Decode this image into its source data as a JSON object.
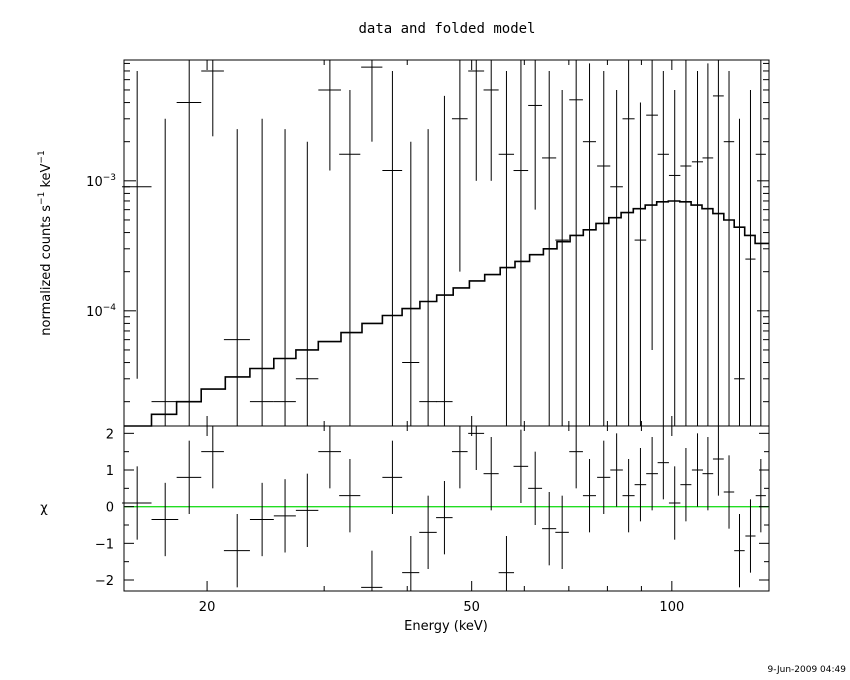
{
  "title": "data and folded model",
  "timestamp": "9-Jun-2009 04:49",
  "chart_data": [
    {
      "type": "scatter",
      "panel": "top",
      "title": "data and folded model",
      "xlabel": "Energy (keV)",
      "ylabel": "normalized counts s⁻¹ keV⁻¹",
      "xscale": "log",
      "yscale": "log",
      "xlim": [
        15,
        140
      ],
      "ylim": [
        1.3e-05,
        0.0085
      ],
      "y_ticks": [
        {
          "value": 0.0001,
          "base": "10",
          "exp": "−4"
        },
        {
          "value": 0.001,
          "base": "10",
          "exp": "−3"
        }
      ],
      "model_color": "#000000",
      "series": [
        {
          "kind": "data",
          "x": [
            15.7,
            17.3,
            18.8,
            20.4,
            22.2,
            24.2,
            26.2,
            28.3,
            30.6,
            32.8,
            35.4,
            38.0,
            40.5,
            43.0,
            45.5,
            48.0,
            50.8,
            53.5,
            56.4,
            59.3,
            62.3,
            65.4,
            68.4,
            71.8,
            75.2,
            79.0,
            82.6,
            86.1,
            89.7,
            93.4,
            97.1,
            101.0,
            105.0,
            109.3,
            113.3,
            117.5,
            121.9,
            126.4,
            131.3,
            136.1
          ],
          "xerr": [
            0.8,
            0.8,
            0.8,
            0.8,
            1.0,
            1.0,
            1.0,
            1.1,
            1.2,
            1.2,
            1.3,
            1.3,
            1.2,
            1.3,
            1.3,
            1.3,
            1.4,
            1.4,
            1.5,
            1.5,
            1.5,
            1.6,
            1.6,
            1.7,
            1.7,
            1.8,
            1.8,
            1.8,
            1.8,
            1.9,
            1.9,
            2.0,
            2.0,
            2.1,
            2.1,
            2.2,
            2.2,
            2.3,
            2.3,
            2.4
          ],
          "y": [
            0.0009,
            2e-05,
            0.004,
            0.007,
            6e-05,
            2e-05,
            2e-05,
            3e-05,
            0.005,
            0.0016,
            0.0075,
            0.0012,
            4e-05,
            2e-05,
            2e-05,
            0.003,
            0.007,
            0.005,
            0.0016,
            0.0012,
            0.0038,
            0.0015,
            0.00035,
            0.0042,
            0.002,
            0.0013,
            0.0009,
            0.003,
            0.00035,
            0.0032,
            0.0016,
            0.0011,
            0.0013,
            0.0014,
            0.0015,
            0.0045,
            0.002,
            3e-05,
            0.00025,
            0.0016
          ],
          "ylo": [
            3e-05,
            1.3e-05,
            1.3e-05,
            0.0022,
            1.3e-05,
            1.3e-05,
            1.3e-05,
            1.3e-05,
            0.0012,
            1.3e-05,
            0.002,
            1.3e-05,
            1.3e-05,
            1.3e-05,
            1.3e-05,
            0.0002,
            0.001,
            0.001,
            1.3e-05,
            1.3e-05,
            0.0006,
            1.3e-05,
            1.3e-05,
            1.3e-05,
            1.3e-05,
            1.3e-05,
            1.3e-05,
            1.3e-05,
            1.3e-05,
            5e-05,
            1.3e-05,
            1.3e-05,
            1.3e-05,
            1.3e-05,
            1.3e-05,
            1.3e-05,
            1.3e-05,
            1.3e-05,
            1.3e-05,
            1.3e-05
          ],
          "yhi": [
            0.007,
            0.003,
            0.0085,
            0.0085,
            0.0025,
            0.003,
            0.0025,
            0.002,
            0.0085,
            0.005,
            0.0085,
            0.007,
            0.002,
            0.0025,
            0.0045,
            0.0085,
            0.0085,
            0.0085,
            0.007,
            0.0085,
            0.0085,
            0.007,
            0.005,
            0.0085,
            0.008,
            0.007,
            0.005,
            0.0085,
            0.004,
            0.0085,
            0.007,
            0.005,
            0.0085,
            0.007,
            0.008,
            0.0085,
            0.007,
            0.003,
            0.005,
            0.0085
          ]
        },
        {
          "kind": "model",
          "edges": [
            15,
            16.5,
            18,
            19.6,
            21.3,
            23.2,
            25.2,
            27.2,
            29.4,
            31.8,
            34.2,
            36.7,
            39.3,
            41.8,
            44.3,
            46.9,
            49.6,
            52.3,
            55.2,
            58.1,
            61.1,
            64.1,
            67.2,
            70.3,
            73.6,
            76.9,
            80.4,
            83.9,
            87.5,
            91.2,
            94.9,
            98.8,
            102.8,
            106.9,
            111.0,
            115.3,
            119.7,
            124.1,
            128.7,
            133.4,
            140
          ],
          "y": [
            1.3e-05,
            1.6e-05,
            2e-05,
            2.5e-05,
            3.1e-05,
            3.6e-05,
            4.3e-05,
            5e-05,
            5.8e-05,
            6.8e-05,
            8e-05,
            9.2e-05,
            0.000104,
            0.000118,
            0.000132,
            0.00015,
            0.00017,
            0.00019,
            0.000215,
            0.00024,
            0.00027,
            0.0003,
            0.00034,
            0.00038,
            0.00042,
            0.00047,
            0.00052,
            0.00057,
            0.00061,
            0.00065,
            0.00069,
            0.0007,
            0.00069,
            0.00065,
            0.00061,
            0.00056,
            0.0005,
            0.00044,
            0.00038,
            0.00033
          ]
        }
      ]
    },
    {
      "type": "scatter",
      "panel": "bottom",
      "xlabel": "Energy (keV)",
      "ylabel": "χ",
      "xscale": "log",
      "xlim": [
        15,
        140
      ],
      "ylim": [
        -2.3,
        2.2
      ],
      "x_ticks": [
        20,
        50,
        100
      ],
      "y_ticks": [
        -2,
        -1,
        0,
        1,
        2
      ],
      "zero_line_color": "#22dd22",
      "series": [
        {
          "kind": "residuals",
          "x": [
            15.7,
            17.3,
            18.8,
            20.4,
            22.2,
            24.2,
            26.2,
            28.3,
            30.6,
            32.8,
            35.4,
            38.0,
            40.5,
            43.0,
            45.5,
            48.0,
            50.8,
            53.5,
            56.4,
            59.3,
            62.3,
            65.4,
            68.4,
            71.8,
            75.2,
            79.0,
            82.6,
            86.1,
            89.7,
            93.4,
            97.1,
            101.0,
            105.0,
            109.3,
            113.3,
            117.5,
            121.9,
            126.4,
            131.3,
            136.1
          ],
          "xerr": [
            0.8,
            0.8,
            0.8,
            0.8,
            1.0,
            1.0,
            1.0,
            1.1,
            1.2,
            1.2,
            1.3,
            1.3,
            1.2,
            1.3,
            1.3,
            1.3,
            1.4,
            1.4,
            1.5,
            1.5,
            1.5,
            1.6,
            1.6,
            1.7,
            1.7,
            1.8,
            1.8,
            1.8,
            1.8,
            1.9,
            1.9,
            2.0,
            2.0,
            2.1,
            2.1,
            2.2,
            2.2,
            2.3,
            2.3,
            2.4
          ],
          "y": [
            0.1,
            -0.35,
            0.8,
            1.5,
            -1.2,
            -0.35,
            -0.25,
            -0.1,
            1.5,
            0.3,
            -2.2,
            0.8,
            -1.8,
            -0.7,
            -0.3,
            1.5,
            2.0,
            0.9,
            -1.8,
            1.1,
            0.5,
            -0.6,
            -0.7,
            1.5,
            0.3,
            0.8,
            1.0,
            0.3,
            0.6,
            0.9,
            1.2,
            0.1,
            0.6,
            1.0,
            0.9,
            1.3,
            0.4,
            -1.2,
            -0.8,
            0.3
          ],
          "yerr": [
            1.0,
            1.0,
            1.0,
            1.0,
            1.0,
            1.0,
            1.0,
            1.0,
            1.0,
            1.0,
            1.0,
            1.0,
            1.0,
            1.0,
            1.0,
            1.0,
            1.0,
            1.0,
            1.0,
            1.0,
            1.0,
            1.0,
            1.0,
            1.0,
            1.0,
            1.0,
            1.0,
            1.0,
            1.0,
            1.0,
            1.0,
            1.0,
            1.0,
            1.0,
            1.0,
            1.0,
            1.0,
            1.0,
            1.0,
            1.0
          ]
        }
      ]
    }
  ]
}
